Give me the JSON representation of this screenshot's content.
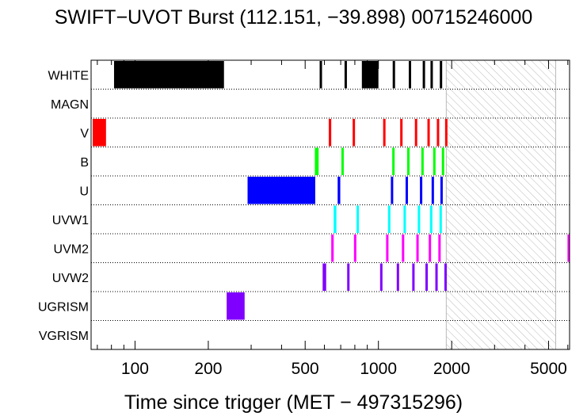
{
  "chart_data": {
    "type": "timeline",
    "title": "SWIFT−UVOT Burst (112.151, −39.898) 00715246000",
    "xlabel": "Time since trigger (MET − 497315296)",
    "xscale": "log",
    "xlim": [
      66,
      6100
    ],
    "x_ticks": [
      100,
      200,
      500,
      1000,
      2000,
      5000
    ],
    "x_tick_labels": [
      "100",
      "200",
      "500",
      "1000",
      "2000",
      "5000"
    ],
    "unavailable_region": [
      1900,
      5350
    ],
    "rows": [
      {
        "name": "WHITE",
        "color": "#000000",
        "segments": [
          [
            82,
            232
          ],
          [
            575,
            585
          ],
          [
            730,
            738
          ],
          [
            855,
            1000
          ],
          [
            1150,
            1165
          ],
          [
            1340,
            1355
          ],
          [
            1530,
            1545
          ],
          [
            1650,
            1660
          ],
          [
            1800,
            1815
          ]
        ]
      },
      {
        "name": "MAGN",
        "color": "#ff0000",
        "segments": []
      },
      {
        "name": "V",
        "color": "#ff0000",
        "segments": [
          [
            67,
            76
          ],
          [
            625,
            640
          ],
          [
            785,
            800
          ],
          [
            1050,
            1065
          ],
          [
            1235,
            1250
          ],
          [
            1420,
            1435
          ],
          [
            1600,
            1615
          ],
          [
            1750,
            1765
          ],
          [
            1895,
            1905
          ]
        ]
      },
      {
        "name": "B",
        "color": "#00ff00",
        "segments": [
          [
            548,
            568
          ],
          [
            705,
            720
          ],
          [
            1145,
            1160
          ],
          [
            1320,
            1335
          ],
          [
            1510,
            1525
          ],
          [
            1690,
            1705
          ],
          [
            1835,
            1850
          ]
        ]
      },
      {
        "name": "U",
        "color": "#0000ff",
        "segments": [
          [
            290,
            550
          ],
          [
            680,
            697
          ],
          [
            1130,
            1145
          ],
          [
            1300,
            1315
          ],
          [
            1490,
            1505
          ],
          [
            1665,
            1680
          ],
          [
            1810,
            1825
          ]
        ]
      },
      {
        "name": "UVW1",
        "color": "#00ffff",
        "segments": [
          [
            655,
            672
          ],
          [
            815,
            830
          ],
          [
            1100,
            1115
          ],
          [
            1275,
            1290
          ],
          [
            1460,
            1475
          ],
          [
            1640,
            1655
          ],
          [
            1795,
            1810
          ]
        ]
      },
      {
        "name": "UVM2",
        "color": "#ff00ff",
        "segments": [
          [
            640,
            655
          ],
          [
            795,
            810
          ],
          [
            1080,
            1095
          ],
          [
            1255,
            1270
          ],
          [
            1440,
            1455
          ],
          [
            1620,
            1635
          ],
          [
            1775,
            1790
          ],
          [
            6000,
            6100
          ]
        ]
      },
      {
        "name": "UVW2",
        "color": "#8000ff",
        "segments": [
          [
            590,
            610
          ],
          [
            745,
            760
          ],
          [
            1020,
            1035
          ],
          [
            1195,
            1210
          ],
          [
            1385,
            1400
          ],
          [
            1570,
            1585
          ],
          [
            1725,
            1740
          ],
          [
            1880,
            1895
          ]
        ]
      },
      {
        "name": "UGRISM",
        "color": "#8000ff",
        "segments": [
          [
            238,
            282
          ]
        ]
      },
      {
        "name": "VGRISM",
        "color": "#8000ff",
        "segments": []
      }
    ]
  }
}
